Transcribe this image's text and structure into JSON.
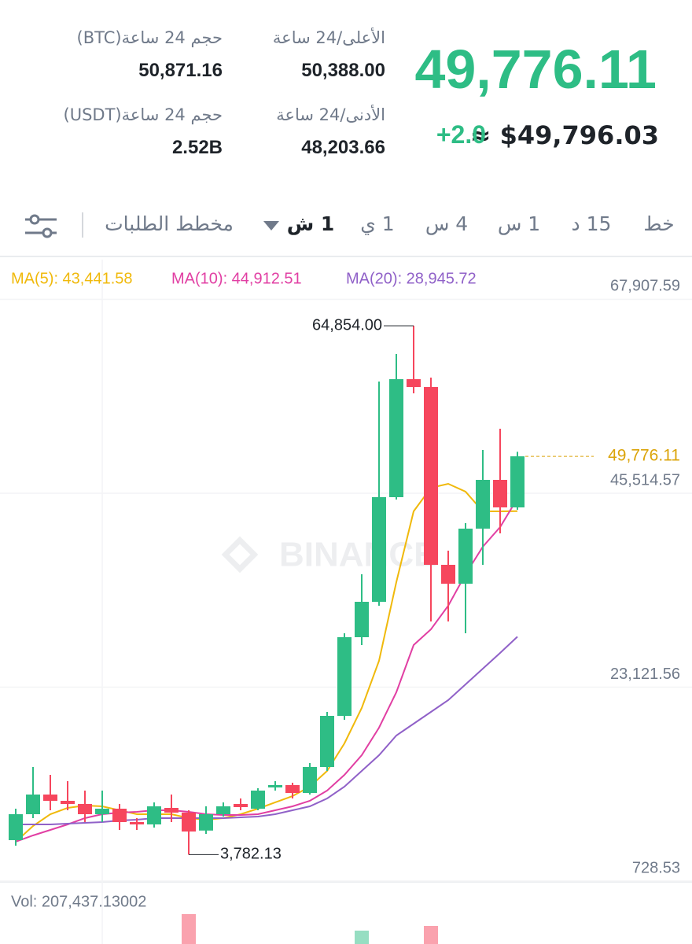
{
  "header": {
    "price": "49,776.11",
    "change": "+2.0",
    "approx": "≈ $49,796.03",
    "stats": [
      {
        "label": "الأعلى/24 ساعة",
        "value": "50,388.00"
      },
      {
        "label": "حجم 24 ساعة(BTC)",
        "value": "50,871.16"
      },
      {
        "label": "الأدنى/24 ساعة",
        "value": "48,203.66"
      },
      {
        "label": "حجم 24 ساعة(USDT)",
        "value": "2.52B"
      }
    ]
  },
  "tabs": [
    "خط",
    "15 د",
    "1 س",
    "4 س",
    "1 ي",
    "1 ش",
    "مخطط الطلبات"
  ],
  "chart_data": {
    "type": "candlestick",
    "up_color": "#2ebd85",
    "down_color": "#f6465d",
    "ylim": [
      728.53,
      72492.13
    ],
    "yticks": [
      {
        "value": 67907.59,
        "label": "67,907.59"
      },
      {
        "value": 45514.57,
        "label": "45,514.57"
      },
      {
        "value": 23121.56,
        "label": "23,121.56"
      },
      {
        "value": 728.53,
        "label": "728.53"
      }
    ],
    "grid": true,
    "candles": [
      {
        "open": 5453,
        "high": 9086,
        "low": 4817,
        "close": 8450
      },
      {
        "open": 8450,
        "high": 13901,
        "low": 7996,
        "close": 10721
      },
      {
        "open": 10721,
        "high": 12992,
        "low": 8905,
        "close": 9995
      },
      {
        "open": 9995,
        "high": 12266,
        "low": 8905,
        "close": 9631
      },
      {
        "open": 9631,
        "high": 11176,
        "low": 7542,
        "close": 8450
      },
      {
        "open": 8450,
        "high": 11176,
        "low": 7542,
        "close": 9086
      },
      {
        "open": 9086,
        "high": 9631,
        "low": 6634,
        "close": 7542
      },
      {
        "open": 7542,
        "high": 7996,
        "low": 6634,
        "close": 7269
      },
      {
        "open": 7269,
        "high": 9813,
        "low": 6906,
        "close": 9359
      },
      {
        "open": 9177,
        "high": 10721,
        "low": 7542,
        "close": 8632
      },
      {
        "open": 8632,
        "high": 8905,
        "low": 3782.13,
        "close": 6452
      },
      {
        "open": 6561,
        "high": 9359,
        "low": 6179,
        "close": 8450
      },
      {
        "open": 8450,
        "high": 9813,
        "low": 8178,
        "close": 9359
      },
      {
        "open": 9631,
        "high": 10267,
        "low": 8905,
        "close": 9268
      },
      {
        "open": 9086,
        "high": 11448,
        "low": 8905,
        "close": 11176
      },
      {
        "open": 11539,
        "high": 12266,
        "low": 11176,
        "close": 11811
      },
      {
        "open": 11811,
        "high": 12084,
        "low": 10267,
        "close": 10903
      },
      {
        "open": 10903,
        "high": 14355,
        "low": 10721,
        "close": 13901
      },
      {
        "open": 13901,
        "high": 20260,
        "low": 13447,
        "close": 19805
      },
      {
        "open": 19805,
        "high": 29344,
        "low": 19351,
        "close": 28889
      },
      {
        "open": 28889,
        "high": 36157,
        "low": 27980,
        "close": 32977
      },
      {
        "open": 32977,
        "high": 58412,
        "low": 32523,
        "close": 45059
      },
      {
        "open": 45059,
        "high": 61592,
        "low": 44786,
        "close": 58685
      },
      {
        "open": 58685,
        "high": 64854,
        "low": 57050,
        "close": 57777
      },
      {
        "open": 57777,
        "high": 58866,
        "low": 30706,
        "close": 37247
      },
      {
        "open": 37247,
        "high": 38882,
        "low": 30706,
        "close": 35066
      },
      {
        "open": 35066,
        "high": 42061,
        "low": 29344,
        "close": 41425
      },
      {
        "open": 41425,
        "high": 50509,
        "low": 37247,
        "close": 47057
      },
      {
        "open": 47057,
        "high": 52962,
        "low": 40880,
        "close": 43878
      },
      {
        "open": 43878,
        "high": 50300,
        "low": 43606,
        "close": 49776.11
      }
    ],
    "series": [
      {
        "name": "MA(5): 43,441.58",
        "color": "#f0b90b",
        "values": [
          5271,
          7088,
          8450,
          9177,
          9450,
          9359,
          8905,
          8450,
          8450,
          8450,
          7996,
          7814,
          7996,
          8450,
          9086,
          9813,
          10540,
          11630,
          13447,
          16626,
          20714,
          26164,
          35248,
          43424,
          46149,
          46603,
          45695,
          43424,
          43424,
          43441.58
        ]
      },
      {
        "name": "MA(10): 44,912.51",
        "color": "#e13fa3",
        "values": [
          5271,
          5998,
          6634,
          7269,
          7996,
          8450,
          8632,
          8723,
          8905,
          8905,
          8723,
          8450,
          8359,
          8359,
          8450,
          8905,
          9359,
          9995,
          11176,
          12992,
          15263,
          18443,
          22531,
          27980,
          29797,
          32523,
          36157,
          39336,
          41607,
          44912.51
        ]
      },
      {
        "name": "MA(20): 28,945.72",
        "color": "#9061c8",
        "values": [
          7269,
          7269,
          7269,
          7360,
          7451,
          7542,
          7724,
          7814,
          7996,
          7996,
          7996,
          7996,
          7996,
          8087,
          8178,
          8450,
          8905,
          9359,
          10267,
          11630,
          13447,
          15263,
          17534,
          18897,
          20260,
          21622,
          23439,
          25256,
          27073,
          28945.72
        ]
      }
    ],
    "annotations": [
      {
        "value": 64854,
        "label": "64,854.00"
      },
      {
        "value": 3782.13,
        "label": "3,782.13"
      }
    ],
    "last_price": {
      "value": 49776.11,
      "label": "49,776.11",
      "color": "#dba40a"
    },
    "volume_label": "Vol: 207,437.13002",
    "watermark": "BINANCE"
  }
}
